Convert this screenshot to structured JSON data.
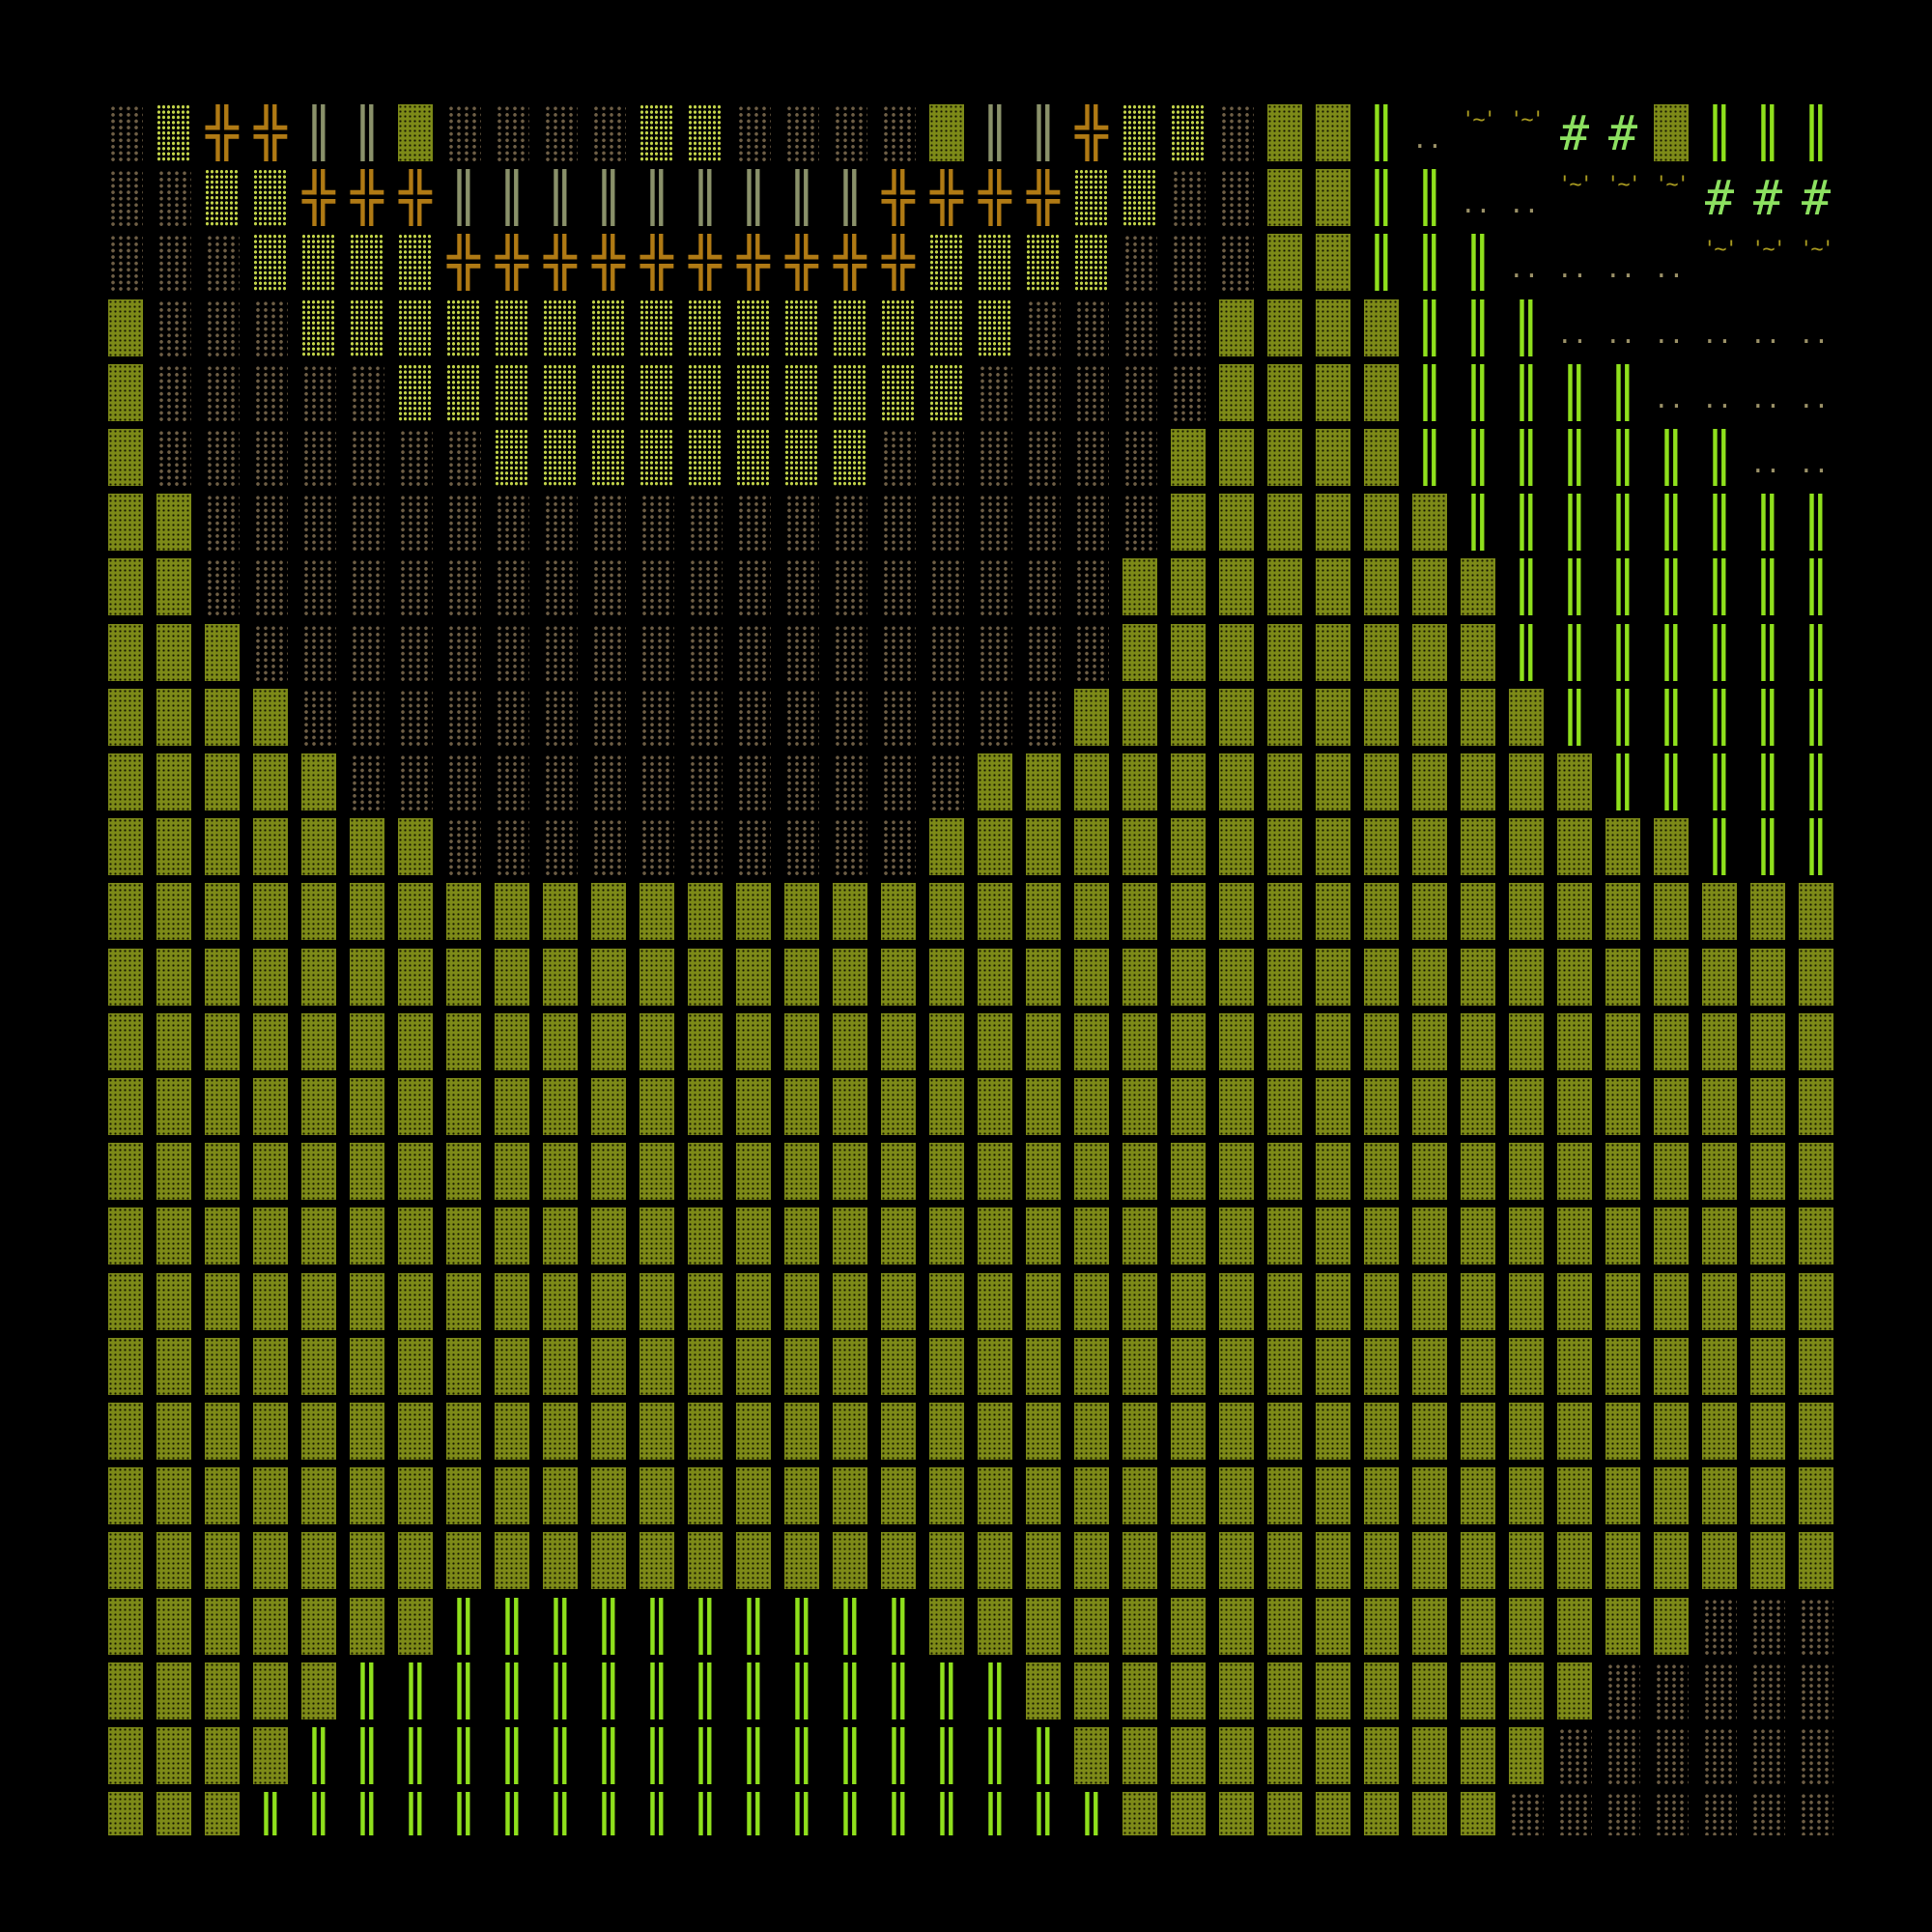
{
  "palette": {
    "D": {
      "name": "dark-shade-tile",
      "color": "#7d8a18"
    },
    "M": {
      "name": "medium-shade-tile",
      "color": "#c3d44a"
    },
    "L": {
      "name": "light-shade-tile",
      "color": "#6f5f46"
    },
    "X": {
      "name": "double-cross-tile",
      "color": "#b07a14",
      "glyph": "╬"
    },
    "G": {
      "name": "double-bar-tile",
      "color": "#8fe01c",
      "glyph": "║"
    },
    "P": {
      "name": "grey-bar-tile",
      "color": "#8a916a",
      "glyph": "║"
    },
    "o": {
      "name": "dots-tile",
      "color": "#9c9268",
      "glyph": "··"
    },
    "~": {
      "name": "tilde-tile",
      "color": "#a89a20",
      "glyph": "'~'"
    },
    "#": {
      "name": "hash-tile",
      "color": "#8ce060",
      "glyph": "#"
    }
  },
  "rows": [
    "LMXXPPDLLLLMMLLLLDPPXMMLDDGo~~##DGGG",
    "LLMMXXXPPPPPPPPPXXXXMMLLDDGGoo~~~###",
    "LLLMMMMXXXXXXXXXXMMMMLLLDDGGGoooo~~~",
    "DLLLMMMMMMMMMMMMMMMLLLLDDDDGGGoooooo",
    "DLLLLLMMMMMMMMMMMMLLLLLDDDDGGGGGoooo",
    "DLLLLLLLMMMMMMMMLLLLLLDDDDDGGGGGGGoo",
    "DDLLLLLLLLLLLLLLLLLLLLDDDDDDGGGGGGGG",
    "DDLLLLLLLLLLLLLLLLLLLDDDDDDDDGGGGGGG",
    "DDDLLLLLLLLLLLLLLLLLLDDDDDDDDGGGGGGG",
    "DDDDLLLLLLLLLLLLLLLLDDDDDDDDDDGGGGGG",
    "DDDDDLLLLLLLLLLLLLDDDDDDDDDDDDDGGGGG",
    "DDDDDDDLLLLLLLLLLDDDDDDDDDDDDDDDDGGG",
    "DDDDDDDDDDDDDDDDDDDDDDDDDDDDDDDDDDDD",
    "DDDDDDDDDDDDDDDDDDDDDDDDDDDDDDDDDDDD",
    "DDDDDDDDDDDDDDDDDDDDDDDDDDDDDDDDDDDD",
    "DDDDDDDDDDDDDDDDDDDDDDDDDDDDDDDDDDDD",
    "DDDDDDDDDDDDDDDDDDDDDDDDDDDDDDDDDDDD",
    "DDDDDDDDDDDDDDDDDDDDDDDDDDDDDDDDDDDD",
    "DDDDDDDDDDDDDDDDDDDDDDDDDDDDDDDDDDDD",
    "DDDDDDDDDDDDDDDDDDDDDDDDDDDDDDDDDDDD",
    "DDDDDDDDDDDDDDDDDDDDDDDDDDDDDDDDDDDD",
    "DDDDDDDDDDDDDDDDDDDDDDDDDDDDDDDDDDDD",
    "DDDDDDDDDDDDDDDDDDDDDDDDDDDDDDDDDDDD",
    "DDDDDDDGGGGGGGGGGDDDDDDDDDDDDDDDDLLL",
    "DDDDDGGGGGGGGGGGGGGDDDDDDDDDDDDLLLLL",
    "DDDDGGGGGGGGGGGGGGGGDDDDDDDDDDLLLLLL",
    "DDDGGGGGGGGGGGGGGGGGGDDDDDDDDLLLLLLL"
  ]
}
